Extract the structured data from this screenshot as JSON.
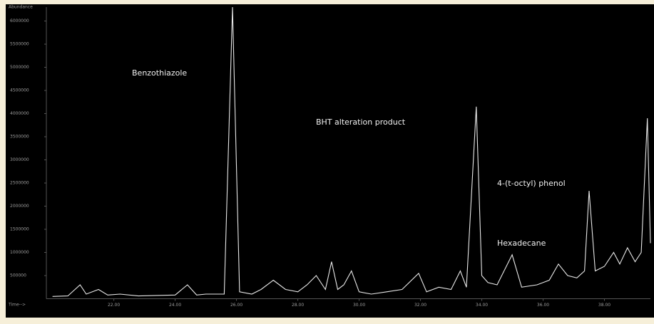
{
  "chart_data": {
    "type": "line",
    "y_label": "Abundance",
    "x_label": "Time-->",
    "annotations": [
      "Benzothiazole",
      "BHT alteration product",
      "4-(t-octyl) phenol",
      "Hexadecane"
    ],
    "xlim": [
      19.8,
      39.5
    ],
    "ylim": [
      0,
      6300000
    ],
    "xticks": [
      {
        "value": 22,
        "label": "22.00"
      },
      {
        "value": 24,
        "label": "24.00"
      },
      {
        "value": 26,
        "label": "26.00"
      },
      {
        "value": 28,
        "label": "28.00"
      },
      {
        "value": 30,
        "label": "30.00"
      },
      {
        "value": 32,
        "label": "32.00"
      },
      {
        "value": 34,
        "label": "34.00"
      },
      {
        "value": 36,
        "label": "36.00"
      },
      {
        "value": 38,
        "label": "38.00"
      }
    ],
    "yticks": [
      500000,
      1000000,
      1500000,
      2000000,
      2500000,
      3000000,
      3500000,
      4000000,
      4500000,
      5000000,
      5500000,
      6000000
    ],
    "color": "#e8e8e8",
    "x": [
      20.0,
      20.5,
      20.9,
      21.1,
      21.5,
      21.8,
      22.2,
      22.8,
      23.4,
      24.0,
      24.4,
      24.7,
      25.0,
      25.6,
      25.87,
      26.1,
      26.5,
      26.8,
      27.2,
      27.6,
      28.0,
      28.3,
      28.6,
      28.9,
      29.1,
      29.3,
      29.5,
      29.75,
      30.0,
      30.4,
      30.9,
      31.4,
      31.94,
      32.2,
      32.6,
      33.0,
      33.3,
      33.5,
      33.82,
      34.0,
      34.2,
      34.5,
      34.99,
      35.3,
      35.8,
      36.2,
      36.5,
      36.8,
      37.1,
      37.35,
      37.5,
      37.7,
      38.0,
      38.3,
      38.5,
      38.75,
      39.0,
      39.2,
      39.4,
      39.5
    ],
    "values": [
      50000,
      60000,
      300000,
      100000,
      200000,
      80000,
      100000,
      60000,
      70000,
      80000,
      300000,
      80000,
      100000,
      100000,
      6300000,
      150000,
      100000,
      200000,
      400000,
      200000,
      150000,
      300000,
      500000,
      200000,
      800000,
      200000,
      300000,
      600000,
      150000,
      100000,
      150000,
      200000,
      550000,
      150000,
      250000,
      200000,
      600000,
      250000,
      4150000,
      500000,
      350000,
      300000,
      950000,
      250000,
      300000,
      400000,
      750000,
      500000,
      450000,
      600000,
      2330000,
      600000,
      700000,
      1000000,
      750000,
      1100000,
      800000,
      1000000,
      3900000,
      1200000
    ]
  }
}
